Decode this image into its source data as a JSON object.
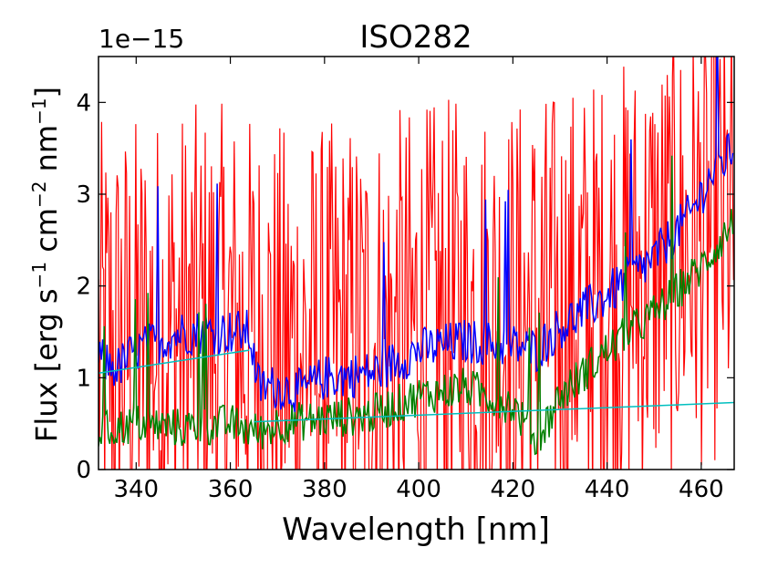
{
  "chart_data": {
    "type": "line",
    "title": "ISO282",
    "xlabel": "Wavelength [nm]",
    "ylabel": {
      "prefix": "Flux [erg s",
      "exp1": "−1",
      "mid": " cm",
      "exp2": "−2",
      "mid2": " nm",
      "exp3": "−1",
      "suffix": "]"
    },
    "y_offset_label": "1e−15",
    "xlim": [
      332,
      467
    ],
    "ylim": [
      0,
      4.5
    ],
    "xticks": [
      340,
      360,
      380,
      400,
      420,
      440,
      460
    ],
    "yticks": [
      0,
      1,
      2,
      3,
      4
    ],
    "y_scale_note": "values in units of 1e-15",
    "grid": false,
    "legend": "none",
    "series": [
      {
        "color": "#ff0000",
        "style": "noisy",
        "trend_x": [
          332,
          340,
          350,
          360,
          370,
          380,
          390,
          400,
          410,
          420,
          430,
          440,
          450,
          460,
          467
        ],
        "trend_y": [
          1.3,
          1.4,
          1.5,
          1.5,
          1.3,
          1.3,
          1.4,
          1.5,
          1.6,
          1.6,
          1.7,
          1.9,
          2.2,
          2.5,
          2.6
        ],
        "noise": 2.5
      },
      {
        "color": "#0000ff",
        "style": "noisy",
        "trend_x": [
          332,
          336,
          340,
          350,
          360,
          364,
          366,
          370,
          375,
          380,
          390,
          400,
          410,
          420,
          425,
          430,
          440,
          450,
          458,
          462,
          467
        ],
        "trend_y": [
          1.2,
          1.1,
          1.3,
          1.5,
          1.5,
          1.5,
          0.9,
          0.9,
          0.85,
          1.0,
          1.05,
          1.3,
          1.4,
          1.35,
          1.3,
          1.55,
          1.9,
          2.3,
          2.8,
          3.2,
          3.5
        ],
        "noise": 0.25
      },
      {
        "color": "#008000",
        "style": "noisy",
        "trend_x": [
          332,
          340,
          350,
          360,
          366,
          370,
          380,
          390,
          400,
          410,
          420,
          425,
          430,
          440,
          450,
          460,
          467
        ],
        "trend_y": [
          0.4,
          0.5,
          0.45,
          0.5,
          0.4,
          0.5,
          0.55,
          0.6,
          0.8,
          0.9,
          0.7,
          0.3,
          0.8,
          1.3,
          1.7,
          2.2,
          2.7
        ],
        "noise": 0.22
      },
      {
        "color": "#00bfbf",
        "style": "smooth",
        "segments": [
          {
            "x": [
              332,
              364
            ],
            "y": [
              1.05,
              1.3
            ]
          },
          {
            "x": [
              365,
              467
            ],
            "y": [
              0.52,
              0.73
            ]
          }
        ]
      }
    ]
  }
}
